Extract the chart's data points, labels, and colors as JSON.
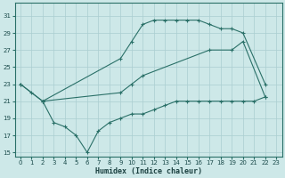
{
  "bg_color": "#cde8e8",
  "grid_color": "#aaced0",
  "line_color": "#2a7068",
  "xlabel": "Humidex (Indice chaleur)",
  "ylim": [
    14.5,
    32.5
  ],
  "xlim": [
    -0.5,
    23.5
  ],
  "yticks": [
    15,
    17,
    19,
    21,
    23,
    25,
    27,
    29,
    31
  ],
  "xticks": [
    0,
    1,
    2,
    3,
    4,
    5,
    6,
    7,
    8,
    9,
    10,
    11,
    12,
    13,
    14,
    15,
    16,
    17,
    18,
    19,
    20,
    21,
    22,
    23
  ],
  "line1_x": [
    0,
    1,
    2,
    9,
    10,
    11,
    12,
    13,
    14,
    15,
    16,
    17,
    18,
    19,
    20,
    22
  ],
  "line1_y": [
    23,
    22,
    21,
    26,
    28,
    30,
    30.5,
    30.5,
    30.5,
    30.5,
    30.5,
    30,
    29.5,
    29.5,
    29,
    23
  ],
  "line2_x": [
    0,
    2,
    9,
    10,
    11,
    17,
    19,
    20,
    22
  ],
  "line2_y": [
    23,
    21,
    22,
    23,
    24,
    27,
    27,
    28,
    21.5
  ],
  "line3_x": [
    2,
    3,
    4,
    5,
    6,
    7,
    8,
    9,
    10,
    11,
    12,
    13,
    14,
    15,
    16,
    17,
    18,
    19,
    20,
    21,
    22
  ],
  "line3_y": [
    21,
    18.5,
    18,
    17,
    15,
    17.5,
    18.5,
    19,
    19.5,
    19.5,
    20,
    20.5,
    21,
    21,
    21,
    21,
    21,
    21,
    21,
    21,
    21.5
  ]
}
